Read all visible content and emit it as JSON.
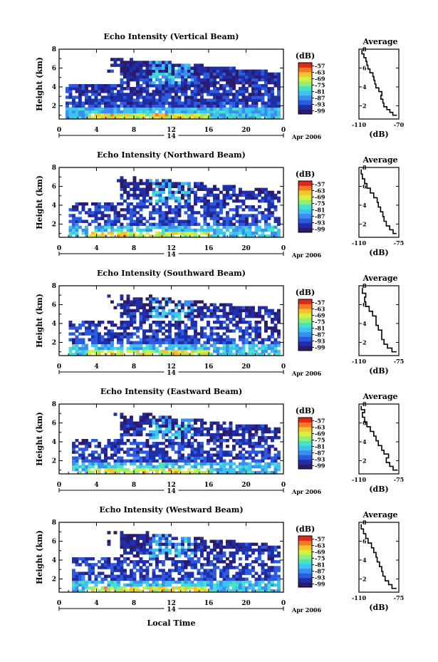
{
  "figure": {
    "xlabel": "Local Time",
    "date_label": "Apr 2006",
    "day_label": "14"
  },
  "colorbar": {
    "unit": "(dB)",
    "tick_labels": [
      "-57",
      "-63",
      "-69",
      "-75",
      "-81",
      "-87",
      "-93",
      "-99"
    ],
    "range": [
      -102,
      -54
    ],
    "colors": [
      "#2b1a6e",
      "#1f2fa8",
      "#2d5be0",
      "#3a8ef0",
      "#3cc4ef",
      "#47e3c8",
      "#8df07a",
      "#d8ef3e",
      "#f5c230",
      "#f07b22",
      "#e02818"
    ]
  },
  "chart_data": [
    {
      "type": "heatmap",
      "title": "Echo Intensity (Vertical Beam)",
      "ylabel": "Height (km)",
      "x_ticks": [
        "0",
        "4",
        "8",
        "12",
        "16",
        "20",
        "0"
      ],
      "y_ticks": [
        "2",
        "4",
        "6",
        "8"
      ],
      "xlim": [
        0,
        24
      ],
      "ylim": [
        0.6,
        8.0
      ],
      "avg_profile": {
        "title": "Average",
        "xlabel": "(dB)",
        "x_ticks": [
          "-110",
          "-70"
        ],
        "y_ticks": [
          "2",
          "4",
          "6",
          "8"
        ],
        "xlim": [
          -110,
          -70
        ],
        "points": [
          [
            -72,
            1.0
          ],
          [
            -76,
            1.3
          ],
          [
            -79,
            1.6
          ],
          [
            -82,
            1.9
          ],
          [
            -85,
            2.3
          ],
          [
            -86,
            2.7
          ],
          [
            -88,
            3.1
          ],
          [
            -87,
            3.5
          ],
          [
            -90,
            3.9
          ],
          [
            -93,
            4.3
          ],
          [
            -94,
            4.7
          ],
          [
            -95,
            5.1
          ],
          [
            -96,
            5.5
          ],
          [
            -99,
            5.9
          ],
          [
            -101,
            6.3
          ],
          [
            -102,
            6.7
          ],
          [
            -103,
            7.1
          ],
          [
            -105,
            7.5
          ],
          [
            -107,
            7.9
          ]
        ]
      }
    },
    {
      "type": "heatmap",
      "title": "Echo Intensity (Northward Beam)",
      "ylabel": "Height (km)",
      "x_ticks": [
        "0",
        "4",
        "8",
        "12",
        "16",
        "20",
        "0"
      ],
      "y_ticks": [
        "2",
        "4",
        "6",
        "8"
      ],
      "xlim": [
        0,
        24
      ],
      "ylim": [
        0.6,
        8.0
      ],
      "avg_profile": {
        "title": "Average",
        "xlabel": "(dB)",
        "x_ticks": [
          "-110",
          "-75"
        ],
        "y_ticks": [
          "2",
          "4",
          "6",
          "8"
        ],
        "xlim": [
          -110,
          -75
        ],
        "points": [
          [
            -77,
            1.0
          ],
          [
            -80,
            1.4
          ],
          [
            -83,
            1.8
          ],
          [
            -86,
            2.3
          ],
          [
            -88,
            2.8
          ],
          [
            -89,
            3.3
          ],
          [
            -91,
            3.8
          ],
          [
            -93,
            4.3
          ],
          [
            -94,
            4.8
          ],
          [
            -97,
            5.3
          ],
          [
            -100,
            5.8
          ],
          [
            -103,
            6.3
          ],
          [
            -105,
            6.8
          ],
          [
            -107,
            7.3
          ],
          [
            -108,
            7.8
          ]
        ]
      }
    },
    {
      "type": "heatmap",
      "title": "Echo Intensity (Southward Beam)",
      "ylabel": "Height (km)",
      "x_ticks": [
        "0",
        "4",
        "8",
        "12",
        "16",
        "20",
        "0"
      ],
      "y_ticks": [
        "2",
        "4",
        "6",
        "8"
      ],
      "xlim": [
        0,
        24
      ],
      "ylim": [
        0.6,
        8.0
      ],
      "avg_profile": {
        "title": "Average",
        "xlabel": "(dB)",
        "x_ticks": [
          "-110",
          "-75"
        ],
        "y_ticks": [
          "2",
          "4",
          "6",
          "8"
        ],
        "xlim": [
          -110,
          -75
        ],
        "points": [
          [
            -77,
            1.0
          ],
          [
            -81,
            1.4
          ],
          [
            -85,
            1.8
          ],
          [
            -88,
            2.3
          ],
          [
            -90,
            2.8
          ],
          [
            -90,
            3.3
          ],
          [
            -93,
            3.8
          ],
          [
            -95,
            4.3
          ],
          [
            -95,
            4.8
          ],
          [
            -98,
            5.3
          ],
          [
            -101,
            5.8
          ],
          [
            -104,
            6.3
          ],
          [
            -105,
            6.8
          ],
          [
            -104,
            7.2
          ],
          [
            -107,
            7.8
          ]
        ]
      }
    },
    {
      "type": "heatmap",
      "title": "Echo Intensity (Eastward Beam)",
      "ylabel": "Height (km)",
      "x_ticks": [
        "0",
        "4",
        "8",
        "12",
        "16",
        "20",
        "0"
      ],
      "y_ticks": [
        "2",
        "4",
        "6",
        "8"
      ],
      "xlim": [
        0,
        24
      ],
      "ylim": [
        0.6,
        8.0
      ],
      "avg_profile": {
        "title": "Average",
        "xlabel": "(dB)",
        "x_ticks": [
          "-110",
          "-75"
        ],
        "y_ticks": [
          "2",
          "4",
          "6",
          "8"
        ],
        "xlim": [
          -110,
          -75
        ],
        "points": [
          [
            -76,
            1.0
          ],
          [
            -80,
            1.4
          ],
          [
            -83,
            1.8
          ],
          [
            -86,
            2.3
          ],
          [
            -84,
            2.7
          ],
          [
            -88,
            3.1
          ],
          [
            -90,
            3.6
          ],
          [
            -93,
            4.1
          ],
          [
            -95,
            4.6
          ],
          [
            -97,
            5.1
          ],
          [
            -100,
            5.6
          ],
          [
            -103,
            6.1
          ],
          [
            -105,
            6.6
          ],
          [
            -107,
            7.1
          ],
          [
            -105,
            7.4
          ],
          [
            -108,
            7.8
          ]
        ]
      }
    },
    {
      "type": "heatmap",
      "title": "Echo Intensity (Westward Beam)",
      "ylabel": "Height (km)",
      "x_ticks": [
        "0",
        "4",
        "8",
        "12",
        "16",
        "20",
        "0"
      ],
      "y_ticks": [
        "2",
        "4",
        "6",
        "8"
      ],
      "xlim": [
        0,
        24
      ],
      "ylim": [
        0.6,
        8.0
      ],
      "avg_profile": {
        "title": "Average",
        "xlabel": "(dB)",
        "x_ticks": [
          "-110",
          "-75"
        ],
        "y_ticks": [
          "2",
          "4",
          "6",
          "8"
        ],
        "xlim": [
          -110,
          -75
        ],
        "points": [
          [
            -77,
            1.0
          ],
          [
            -81,
            1.4
          ],
          [
            -84,
            1.8
          ],
          [
            -87,
            2.3
          ],
          [
            -89,
            2.8
          ],
          [
            -90,
            3.3
          ],
          [
            -92,
            3.8
          ],
          [
            -94,
            4.3
          ],
          [
            -95,
            4.8
          ],
          [
            -97,
            5.3
          ],
          [
            -99,
            5.8
          ],
          [
            -102,
            6.3
          ],
          [
            -104,
            6.8
          ],
          [
            -106,
            7.3
          ],
          [
            -108,
            7.8
          ]
        ]
      }
    }
  ]
}
